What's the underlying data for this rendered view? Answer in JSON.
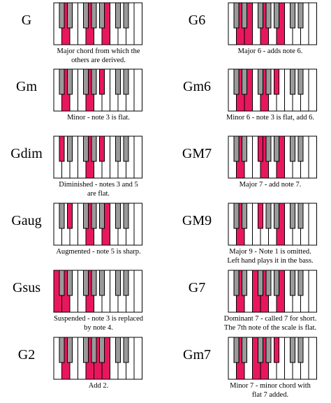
{
  "colors": {
    "highlight": "#e8175d",
    "white_key": "#ffffff",
    "black_key": "#9a9a9a",
    "outline": "#000000"
  },
  "chords": [
    {
      "name": "G",
      "caption": [
        "Major chord from which the",
        "others are derived."
      ],
      "keys": [
        "G",
        "B",
        "D"
      ]
    },
    {
      "name": "G6",
      "caption": [
        "Major 6 - adds note 6."
      ],
      "keys": [
        "G",
        "B",
        "D",
        "E"
      ]
    },
    {
      "name": "Gm",
      "caption": [
        "Minor - note 3 is flat."
      ],
      "keys": [
        "G",
        "A#",
        "D"
      ]
    },
    {
      "name": "Gm6",
      "caption": [
        "Minor 6 - note 3 is flat, add 6."
      ],
      "keys": [
        "G",
        "A#",
        "D",
        "E"
      ]
    },
    {
      "name": "Gdim",
      "caption": [
        "Diminished - notes 3 and 5",
        "are flat."
      ],
      "keys": [
        "G",
        "A#",
        "C#"
      ]
    },
    {
      "name": "GM7",
      "caption": [
        "Major 7 - add note 7."
      ],
      "keys": [
        "G",
        "B",
        "D",
        "F#"
      ]
    },
    {
      "name": "Gaug",
      "caption": [
        "Augmented - note 5 is sharp."
      ],
      "keys": [
        "G",
        "B",
        "D#"
      ]
    },
    {
      "name": "GM9",
      "caption": [
        "Major 9 - Note 1 is omitted.",
        "Left hand plays it in the bass."
      ],
      "keys": [
        "B",
        "D",
        "F#",
        "A2"
      ]
    },
    {
      "name": "Gsus",
      "caption": [
        "Suspended - note 3 is replaced",
        "by note 4."
      ],
      "keys": [
        "G",
        "C",
        "D"
      ]
    },
    {
      "name": "G7",
      "caption": [
        "Dominant 7 - called 7 for short.",
        "The 7th note of the scale is flat."
      ],
      "keys": [
        "G",
        "B",
        "D",
        "F"
      ]
    },
    {
      "name": "G2",
      "caption": [
        "Add 2."
      ],
      "keys": [
        "G",
        "A",
        "B",
        "D"
      ]
    },
    {
      "name": "Gm7",
      "caption": [
        "Minor 7 - minor chord with",
        "flat 7 added."
      ],
      "keys": [
        "G",
        "A#",
        "D",
        "F"
      ]
    }
  ]
}
